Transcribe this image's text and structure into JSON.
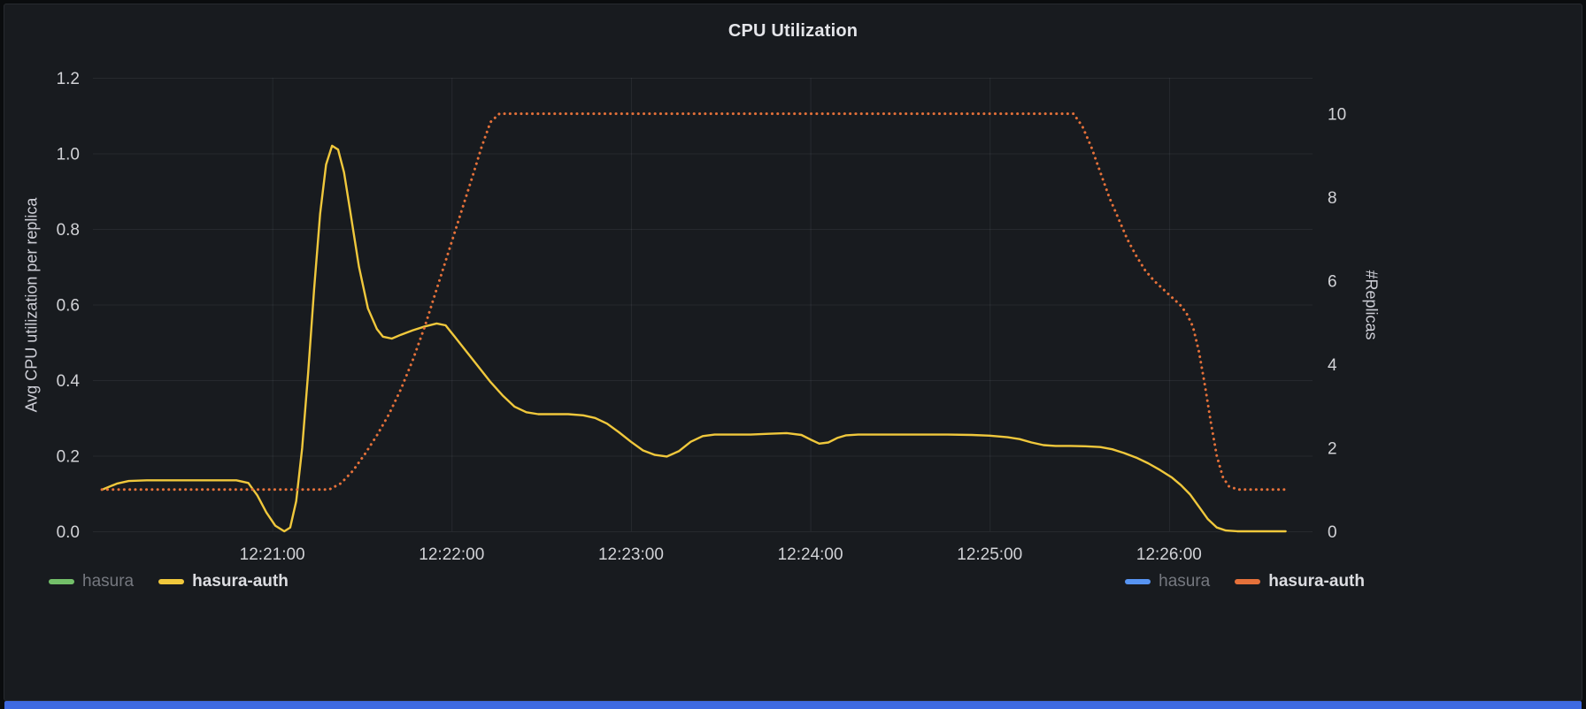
{
  "panel": {
    "title": "CPU Utilization"
  },
  "colors": {
    "panel_background": "#181b1f",
    "grid": "rgba(204,212,224,0.08)",
    "cpu_line": "#F0C83C",
    "replicas_line": "#E5713A",
    "hasura_green": "#73BF69",
    "hasura_blue": "#5794F2",
    "bottom_bar": "#3E6AE1"
  },
  "legend": {
    "left": [
      {
        "label": "hasura",
        "color": "#73BF69",
        "enabled": false
      },
      {
        "label": "hasura-auth",
        "color": "#F0C83C",
        "enabled": true
      }
    ],
    "right": [
      {
        "label": "hasura",
        "color": "#5794F2",
        "enabled": false
      },
      {
        "label": "hasura-auth",
        "color": "#E5713A",
        "enabled": true
      }
    ]
  },
  "chart_data": {
    "type": "line",
    "title": "CPU Utilization",
    "xlabel": "",
    "ylabel_left": "Avg CPU utilization per replica",
    "ylabel_right": "#Replicas",
    "x_unit": "seconds after 12:20:00",
    "x_range": [
      0,
      408
    ],
    "x_ticks": [
      {
        "t": 60,
        "label": "12:21:00"
      },
      {
        "t": 120,
        "label": "12:22:00"
      },
      {
        "t": 180,
        "label": "12:23:00"
      },
      {
        "t": 240,
        "label": "12:24:00"
      },
      {
        "t": 300,
        "label": "12:25:00"
      },
      {
        "t": 360,
        "label": "12:26:00"
      }
    ],
    "ylim_left": [
      0,
      1.2
    ],
    "left_tick_values": [
      0,
      0.2,
      0.4,
      0.6,
      0.8,
      1.0,
      1.2
    ],
    "left_tick_labels": [
      "0.0",
      "0.2",
      "0.4",
      "0.6",
      "0.8",
      "1.0",
      "1.2"
    ],
    "ylim_right": [
      0,
      10.86
    ],
    "right_tick_values": [
      0,
      2,
      4,
      6,
      8,
      10
    ],
    "grid": true,
    "legend_position": "bottom",
    "series": [
      {
        "id": "hasura-cpu",
        "name": "hasura",
        "axis": "left",
        "color": "#73BF69",
        "style": "solid",
        "visible": false,
        "points": []
      },
      {
        "id": "hasura-auth-cpu",
        "name": "hasura-auth",
        "axis": "left",
        "color": "#F0C83C",
        "style": "solid",
        "visible": true,
        "points": [
          [
            3,
            0.11
          ],
          [
            8,
            0.126
          ],
          [
            12,
            0.133
          ],
          [
            18,
            0.135
          ],
          [
            24,
            0.135
          ],
          [
            30,
            0.135
          ],
          [
            36,
            0.135
          ],
          [
            42,
            0.135
          ],
          [
            48,
            0.135
          ],
          [
            52,
            0.128
          ],
          [
            55,
            0.095
          ],
          [
            58,
            0.05
          ],
          [
            61,
            0.015
          ],
          [
            64,
            0.0
          ],
          [
            66,
            0.01
          ],
          [
            68,
            0.08
          ],
          [
            70,
            0.22
          ],
          [
            72,
            0.42
          ],
          [
            74,
            0.64
          ],
          [
            76,
            0.84
          ],
          [
            78,
            0.97
          ],
          [
            80,
            1.02
          ],
          [
            82,
            1.01
          ],
          [
            84,
            0.95
          ],
          [
            86,
            0.85
          ],
          [
            89,
            0.7
          ],
          [
            92,
            0.59
          ],
          [
            95,
            0.535
          ],
          [
            97,
            0.515
          ],
          [
            100,
            0.51
          ],
          [
            103,
            0.52
          ],
          [
            107,
            0.532
          ],
          [
            111,
            0.542
          ],
          [
            115,
            0.55
          ],
          [
            118,
            0.545
          ],
          [
            121,
            0.515
          ],
          [
            125,
            0.475
          ],
          [
            129,
            0.435
          ],
          [
            133,
            0.395
          ],
          [
            137,
            0.36
          ],
          [
            141,
            0.33
          ],
          [
            145,
            0.315
          ],
          [
            149,
            0.31
          ],
          [
            154,
            0.31
          ],
          [
            159,
            0.31
          ],
          [
            164,
            0.307
          ],
          [
            168,
            0.3
          ],
          [
            172,
            0.285
          ],
          [
            176,
            0.262
          ],
          [
            180,
            0.237
          ],
          [
            184,
            0.214
          ],
          [
            188,
            0.202
          ],
          [
            192,
            0.198
          ],
          [
            196,
            0.212
          ],
          [
            200,
            0.237
          ],
          [
            204,
            0.252
          ],
          [
            208,
            0.256
          ],
          [
            214,
            0.256
          ],
          [
            220,
            0.256
          ],
          [
            226,
            0.258
          ],
          [
            232,
            0.26
          ],
          [
            237,
            0.255
          ],
          [
            240,
            0.243
          ],
          [
            243,
            0.232
          ],
          [
            246,
            0.235
          ],
          [
            249,
            0.247
          ],
          [
            252,
            0.254
          ],
          [
            256,
            0.256
          ],
          [
            262,
            0.256
          ],
          [
            270,
            0.256
          ],
          [
            278,
            0.256
          ],
          [
            286,
            0.256
          ],
          [
            294,
            0.255
          ],
          [
            300,
            0.253
          ],
          [
            306,
            0.249
          ],
          [
            310,
            0.244
          ],
          [
            314,
            0.235
          ],
          [
            318,
            0.228
          ],
          [
            322,
            0.226
          ],
          [
            327,
            0.226
          ],
          [
            332,
            0.225
          ],
          [
            337,
            0.223
          ],
          [
            341,
            0.217
          ],
          [
            345,
            0.207
          ],
          [
            349,
            0.195
          ],
          [
            353,
            0.18
          ],
          [
            357,
            0.162
          ],
          [
            361,
            0.142
          ],
          [
            364,
            0.122
          ],
          [
            367,
            0.098
          ],
          [
            370,
            0.065
          ],
          [
            373,
            0.032
          ],
          [
            376,
            0.01
          ],
          [
            379,
            0.002
          ],
          [
            383,
            0.0
          ],
          [
            389,
            0.0
          ],
          [
            395,
            0.0
          ],
          [
            399,
            0.0
          ]
        ]
      },
      {
        "id": "hasura-replicas",
        "name": "hasura",
        "axis": "right",
        "color": "#5794F2",
        "style": "solid",
        "visible": false,
        "points": []
      },
      {
        "id": "hasura-auth-replicas",
        "name": "hasura-auth",
        "axis": "right",
        "color": "#E5713A",
        "style": "dotted",
        "visible": true,
        "points": [
          [
            3,
            1
          ],
          [
            15,
            1
          ],
          [
            27,
            1
          ],
          [
            39,
            1
          ],
          [
            51,
            1
          ],
          [
            60,
            1
          ],
          [
            68,
            1
          ],
          [
            74,
            1
          ],
          [
            79,
            1
          ],
          [
            83,
            1.15
          ],
          [
            87,
            1.45
          ],
          [
            91,
            1.85
          ],
          [
            95,
            2.3
          ],
          [
            99,
            2.8
          ],
          [
            103,
            3.4
          ],
          [
            107,
            4.1
          ],
          [
            111,
            4.9
          ],
          [
            115,
            5.8
          ],
          [
            119,
            6.7
          ],
          [
            123,
            7.6
          ],
          [
            127,
            8.5
          ],
          [
            130,
            9.2
          ],
          [
            133,
            9.8
          ],
          [
            136,
            10
          ],
          [
            142,
            10
          ],
          [
            152,
            10
          ],
          [
            164,
            10
          ],
          [
            178,
            10
          ],
          [
            194,
            10
          ],
          [
            212,
            10
          ],
          [
            232,
            10
          ],
          [
            252,
            10
          ],
          [
            272,
            10
          ],
          [
            292,
            10
          ],
          [
            308,
            10
          ],
          [
            320,
            10
          ],
          [
            328,
            10
          ],
          [
            331,
            9.7
          ],
          [
            334,
            9.2
          ],
          [
            337,
            8.6
          ],
          [
            340,
            8.0
          ],
          [
            343,
            7.5
          ],
          [
            346,
            7.0
          ],
          [
            349,
            6.6
          ],
          [
            352,
            6.25
          ],
          [
            355,
            6.0
          ],
          [
            358,
            5.8
          ],
          [
            361,
            5.6
          ],
          [
            364,
            5.4
          ],
          [
            366,
            5.2
          ],
          [
            368,
            4.9
          ],
          [
            370,
            4.3
          ],
          [
            372,
            3.5
          ],
          [
            374,
            2.6
          ],
          [
            376,
            1.8
          ],
          [
            378,
            1.3
          ],
          [
            380,
            1.08
          ],
          [
            383,
            1
          ],
          [
            388,
            1
          ],
          [
            394,
            1
          ],
          [
            399,
            1
          ]
        ]
      }
    ]
  }
}
